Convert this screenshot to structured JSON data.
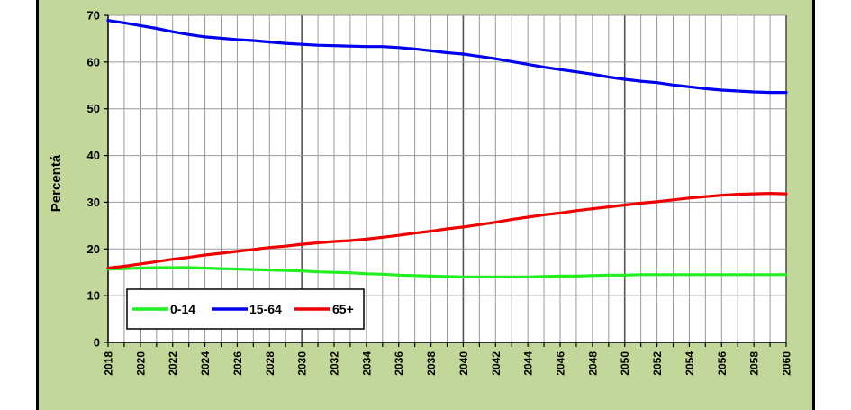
{
  "chart_data": {
    "type": "line",
    "title": "",
    "xlabel": "",
    "ylabel": "Percentá",
    "ylim": [
      0,
      70
    ],
    "xlim": [
      2018,
      2060
    ],
    "yticks": [
      "0",
      "10",
      "20",
      "30",
      "40",
      "50",
      "60",
      "70"
    ],
    "xticks": [
      "2018",
      "2020",
      "2022",
      "2024",
      "2026",
      "2028",
      "2030",
      "2032",
      "2034",
      "2036",
      "2038",
      "2040",
      "2042",
      "2044",
      "2046",
      "2048",
      "2050",
      "2052",
      "2054",
      "2056",
      "2058",
      "2060"
    ],
    "grid": true,
    "legend_position": "bottom-left",
    "x": [
      2018,
      2019,
      2020,
      2021,
      2022,
      2023,
      2024,
      2025,
      2026,
      2027,
      2028,
      2029,
      2030,
      2031,
      2032,
      2033,
      2034,
      2035,
      2036,
      2037,
      2038,
      2039,
      2040,
      2041,
      2042,
      2043,
      2044,
      2045,
      2046,
      2047,
      2048,
      2049,
      2050,
      2051,
      2052,
      2053,
      2054,
      2055,
      2056,
      2057,
      2058,
      2059,
      2060
    ],
    "series": [
      {
        "name": "0-14",
        "color": "#22ee22",
        "values": [
          15.7,
          15.8,
          15.9,
          16.0,
          16.0,
          16.0,
          15.9,
          15.8,
          15.7,
          15.6,
          15.5,
          15.4,
          15.3,
          15.1,
          15.0,
          14.9,
          14.7,
          14.6,
          14.4,
          14.3,
          14.2,
          14.1,
          14.0,
          14.0,
          14.0,
          14.0,
          14.0,
          14.1,
          14.2,
          14.2,
          14.3,
          14.4,
          14.4,
          14.5,
          14.5,
          14.5,
          14.5,
          14.5,
          14.5,
          14.5,
          14.5,
          14.5,
          14.5
        ]
      },
      {
        "name": "15-64",
        "color": "#0000ee",
        "values": [
          68.9,
          68.4,
          67.8,
          67.2,
          66.5,
          65.9,
          65.4,
          65.1,
          64.8,
          64.6,
          64.3,
          64.0,
          63.8,
          63.6,
          63.5,
          63.4,
          63.3,
          63.3,
          63.1,
          62.8,
          62.4,
          62.0,
          61.7,
          61.2,
          60.7,
          60.1,
          59.5,
          58.9,
          58.4,
          57.9,
          57.4,
          56.8,
          56.3,
          55.9,
          55.6,
          55.1,
          54.7,
          54.3,
          54.0,
          53.8,
          53.6,
          53.5,
          53.5
        ]
      },
      {
        "name": "65+",
        "color": "#ee0000",
        "values": [
          15.9,
          16.3,
          16.8,
          17.3,
          17.8,
          18.2,
          18.7,
          19.1,
          19.5,
          19.9,
          20.3,
          20.6,
          21.0,
          21.3,
          21.6,
          21.8,
          22.1,
          22.5,
          22.9,
          23.4,
          23.8,
          24.3,
          24.7,
          25.2,
          25.7,
          26.3,
          26.8,
          27.3,
          27.7,
          28.2,
          28.6,
          29.0,
          29.4,
          29.8,
          30.1,
          30.5,
          30.9,
          31.2,
          31.5,
          31.7,
          31.8,
          31.9,
          31.8
        ]
      }
    ]
  }
}
